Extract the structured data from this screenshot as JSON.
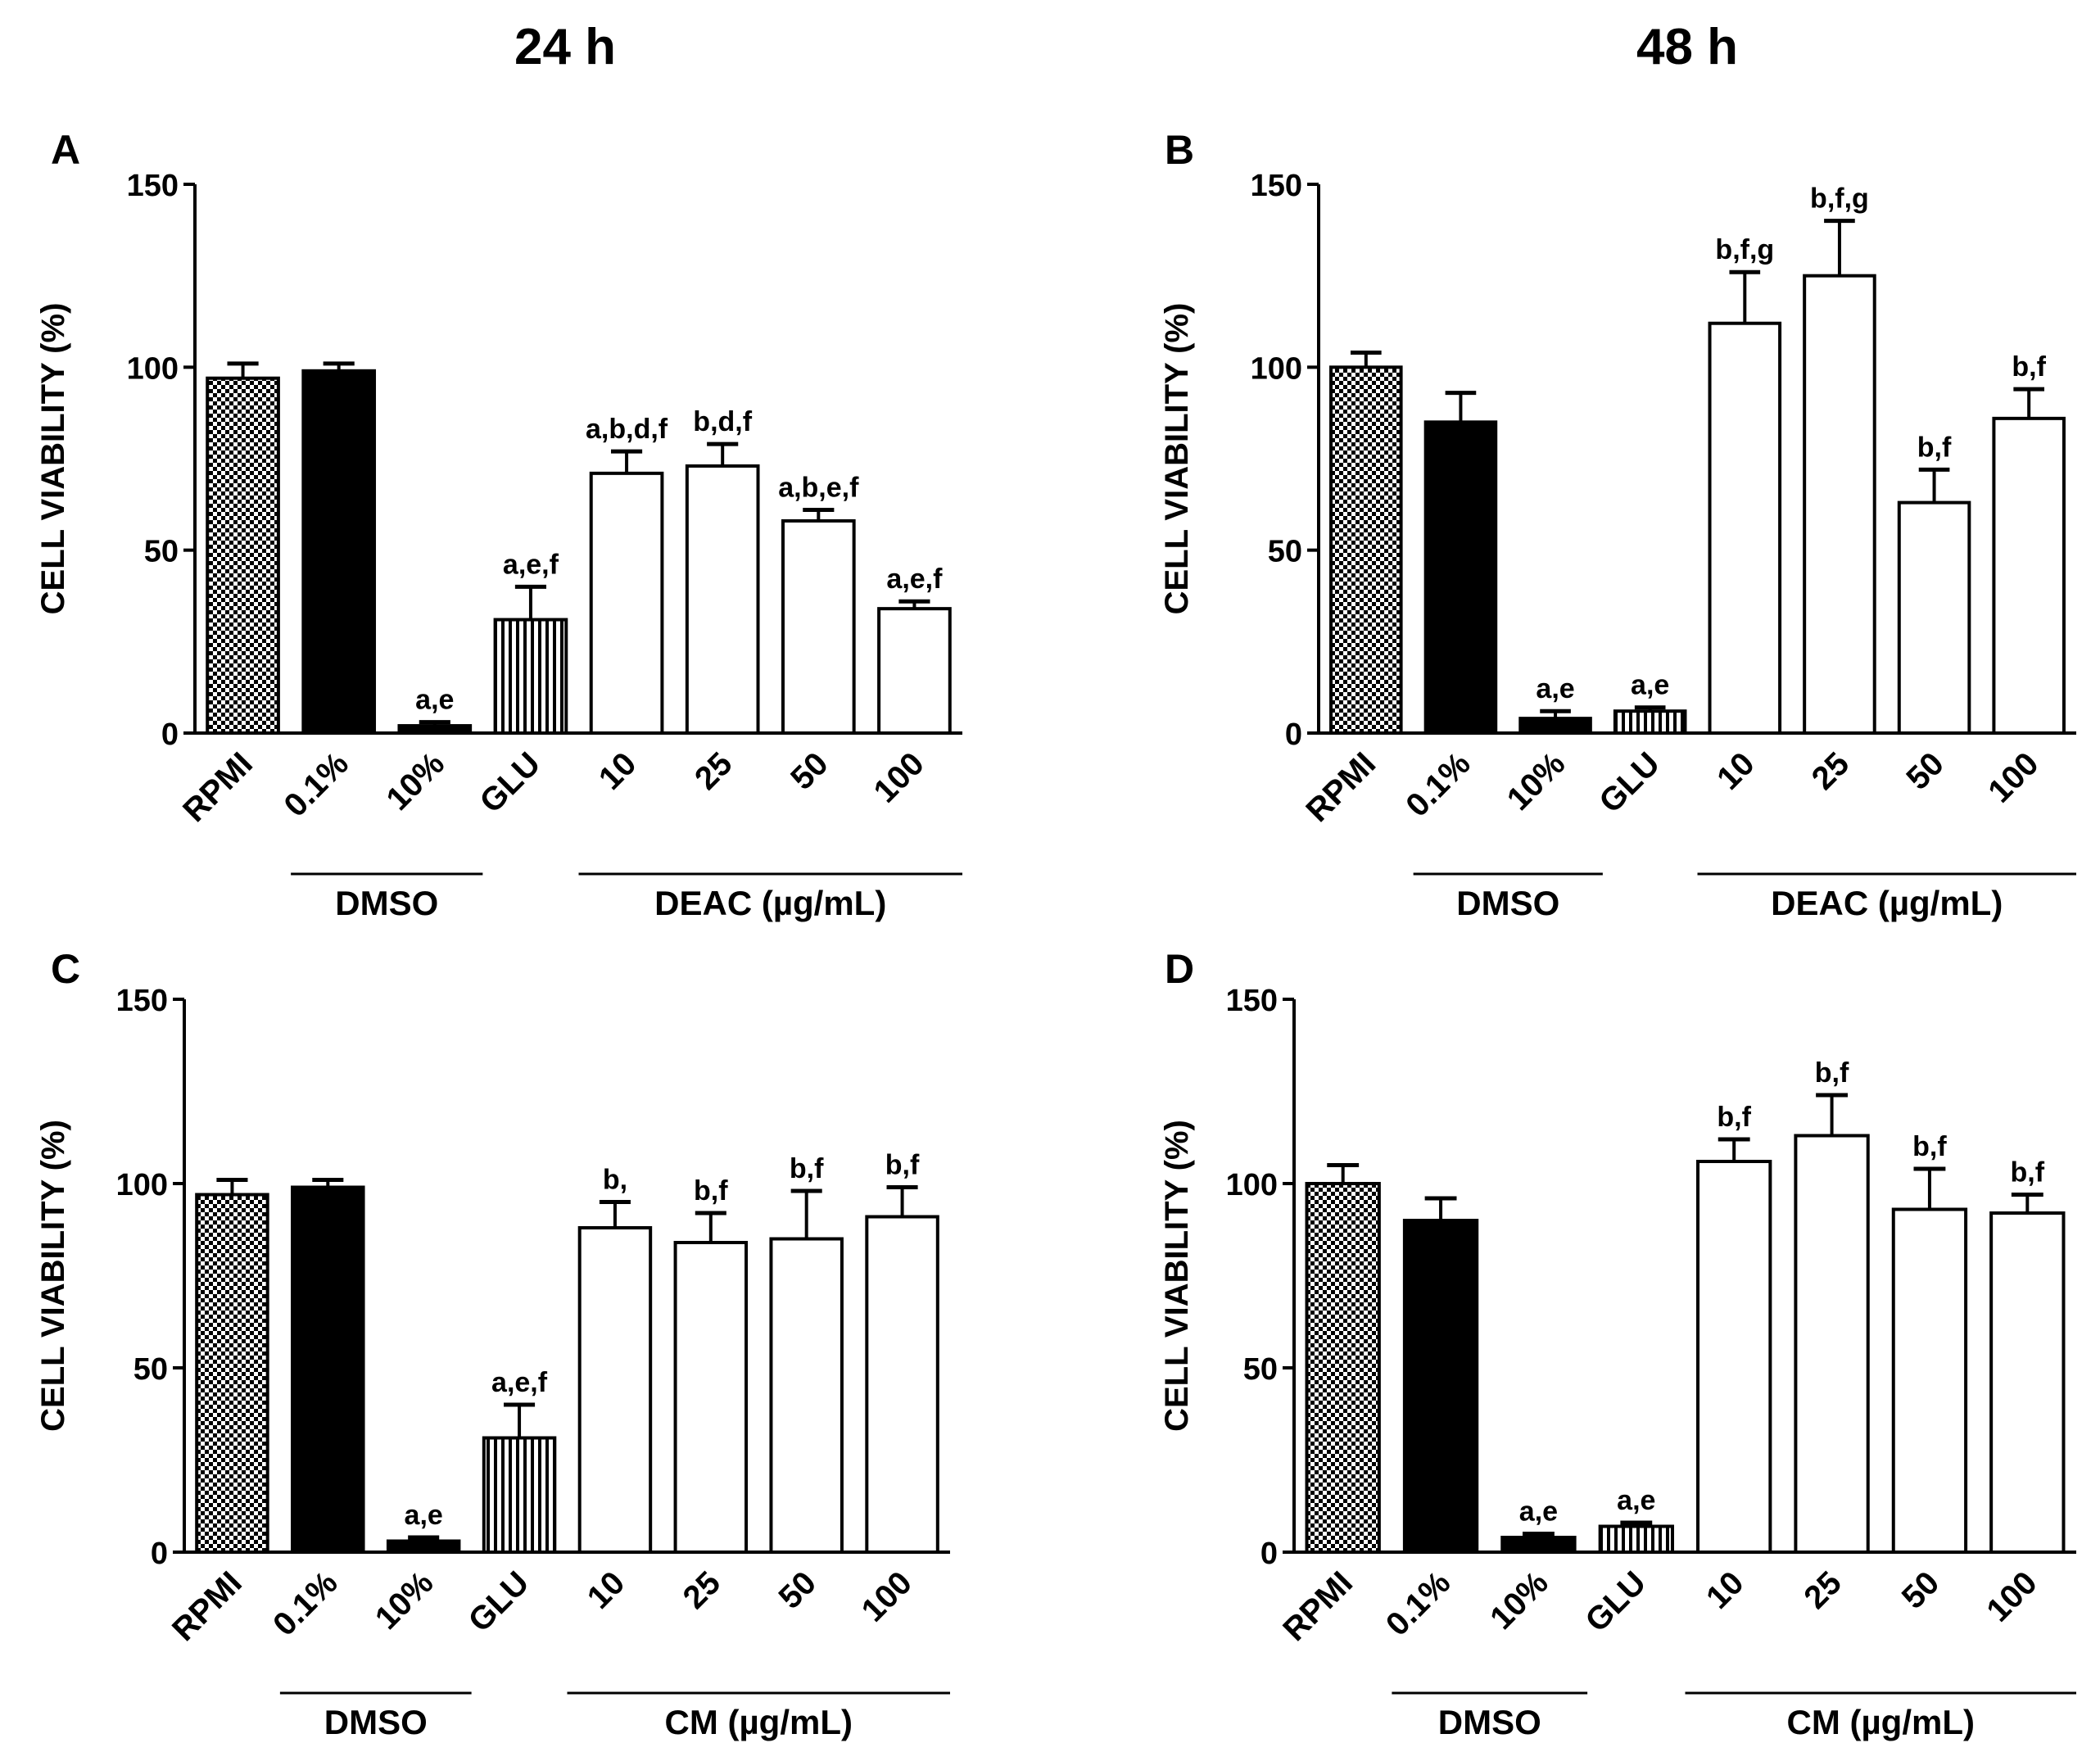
{
  "column_titles": [
    "24 h",
    "48 h"
  ],
  "chart_data": [
    {
      "type": "bar",
      "panel": "A",
      "ylabel": "CELL VIABILITY (%)",
      "ylim": [
        0,
        150
      ],
      "yticks": [
        0,
        50,
        100,
        150
      ],
      "categories": [
        "RPMI",
        "0.1%",
        "10%",
        "GLU",
        "10",
        "25",
        "50",
        "100"
      ],
      "values": [
        97,
        99,
        2,
        31,
        71,
        73,
        58,
        34
      ],
      "errors": [
        4,
        2,
        1,
        9,
        6,
        6,
        3,
        2
      ],
      "significance": [
        "",
        "",
        "a,e",
        "a,e,f",
        "a,b,d,f",
        "b,d,f",
        "a,b,e,f",
        "a,e,f"
      ],
      "groups": [
        {
          "label": "DMSO",
          "start": 1,
          "end": 2
        },
        {
          "label": "DEAC (µg/mL)",
          "start": 4,
          "end": 7
        }
      ]
    },
    {
      "type": "bar",
      "panel": "B",
      "ylabel": "CELL VIABILITY (%)",
      "ylim": [
        0,
        150
      ],
      "yticks": [
        0,
        50,
        100,
        150
      ],
      "categories": [
        "RPMI",
        "0.1%",
        "10%",
        "GLU",
        "10",
        "25",
        "50",
        "100"
      ],
      "values": [
        100,
        85,
        4,
        6,
        112,
        125,
        63,
        86
      ],
      "errors": [
        4,
        8,
        2,
        1,
        14,
        15,
        9,
        8
      ],
      "significance": [
        "",
        "",
        "a,e",
        "a,e",
        "b,f,g",
        "b,f,g",
        "b,f",
        "b,f"
      ],
      "groups": [
        {
          "label": "DMSO",
          "start": 1,
          "end": 2
        },
        {
          "label": "DEAC (µg/mL)",
          "start": 4,
          "end": 7
        }
      ]
    },
    {
      "type": "bar",
      "panel": "C",
      "ylabel": "CELL VIABILITY (%)",
      "ylim": [
        0,
        150
      ],
      "yticks": [
        0,
        50,
        100,
        150
      ],
      "categories": [
        "RPMI",
        "0.1%",
        "10%",
        "GLU",
        "10",
        "25",
        "50",
        "100"
      ],
      "values": [
        97,
        99,
        3,
        31,
        88,
        84,
        85,
        91
      ],
      "errors": [
        4,
        2,
        1,
        9,
        7,
        8,
        13,
        8
      ],
      "significance": [
        "",
        "",
        "a,e",
        "a,e,f",
        "b,",
        "b,f",
        "b,f",
        "b,f"
      ],
      "groups": [
        {
          "label": "DMSO",
          "start": 1,
          "end": 2
        },
        {
          "label": "CM (µg/mL)",
          "start": 4,
          "end": 7
        }
      ]
    },
    {
      "type": "bar",
      "panel": "D",
      "ylabel": "CELL VIABILITY (%)",
      "ylim": [
        0,
        150
      ],
      "yticks": [
        0,
        50,
        100,
        150
      ],
      "categories": [
        "RPMI",
        "0.1%",
        "10%",
        "GLU",
        "10",
        "25",
        "50",
        "100"
      ],
      "values": [
        100,
        90,
        4,
        7,
        106,
        113,
        93,
        92
      ],
      "errors": [
        5,
        6,
        1,
        1,
        6,
        11,
        11,
        5
      ],
      "significance": [
        "",
        "",
        "a,e",
        "a,e",
        "b,f",
        "b,f",
        "b,f",
        "b,f"
      ],
      "groups": [
        {
          "label": "DMSO",
          "start": 1,
          "end": 2
        },
        {
          "label": "CM (µg/mL)",
          "start": 4,
          "end": 7
        }
      ]
    }
  ]
}
